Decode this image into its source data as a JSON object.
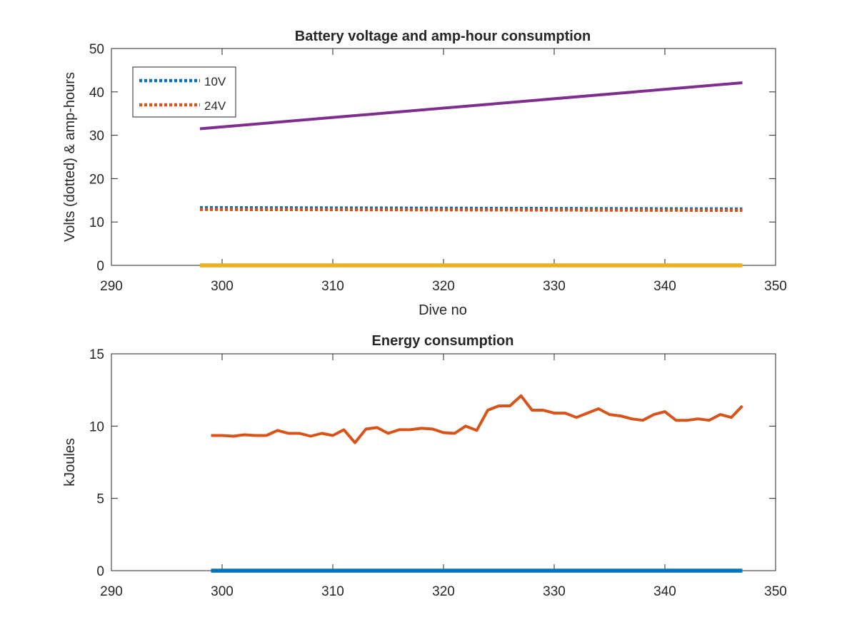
{
  "chart_data": [
    {
      "type": "line",
      "title": "Battery voltage and amp-hour consumption",
      "xlabel": "Dive no",
      "ylabel": "Volts (dotted) & amp-hours",
      "xlim": [
        290,
        350
      ],
      "ylim": [
        0,
        50
      ],
      "xticks": [
        290,
        300,
        310,
        320,
        330,
        340,
        350
      ],
      "yticks": [
        0,
        10,
        20,
        30,
        40,
        50
      ],
      "grid": false,
      "legend": {
        "placement": "top-left",
        "entries": [
          "10V",
          "24V"
        ]
      },
      "series": [
        {
          "name": "10V",
          "style": "dotted",
          "color": "#0072BD",
          "x": [
            298,
            347
          ],
          "y": [
            13.3,
            13.0
          ]
        },
        {
          "name": "24V",
          "style": "dotted",
          "color": "#D95319",
          "x": [
            298,
            347
          ],
          "y": [
            12.9,
            12.7
          ]
        },
        {
          "style": "solid",
          "color": "#7E2F8E",
          "x": [
            298,
            347
          ],
          "y": [
            31.5,
            42.1
          ]
        },
        {
          "style": "solid",
          "color": "#EDB120",
          "x": [
            298,
            347
          ],
          "y": [
            0.0,
            0.0
          ]
        }
      ]
    },
    {
      "type": "line",
      "title": "Energy consumption",
      "xlabel": "",
      "ylabel": "kJoules",
      "xlim": [
        290,
        350
      ],
      "ylim": [
        0,
        15
      ],
      "xticks": [
        290,
        300,
        310,
        320,
        330,
        340,
        350
      ],
      "yticks": [
        0,
        5,
        10,
        15
      ],
      "grid": false,
      "series": [
        {
          "style": "solid",
          "color": "#D95319",
          "x": [
            299,
            300,
            301,
            302,
            303,
            304,
            305,
            306,
            307,
            308,
            309,
            310,
            311,
            312,
            313,
            314,
            315,
            316,
            317,
            318,
            319,
            320,
            321,
            322,
            323,
            324,
            325,
            326,
            327,
            328,
            329,
            330,
            331,
            332,
            333,
            334,
            335,
            336,
            337,
            338,
            339,
            340,
            341,
            342,
            343,
            344,
            345,
            346,
            347
          ],
          "y": [
            9.35,
            9.35,
            9.3,
            9.4,
            9.35,
            9.35,
            9.7,
            9.5,
            9.5,
            9.3,
            9.5,
            9.35,
            9.75,
            8.85,
            9.8,
            9.9,
            9.5,
            9.75,
            9.75,
            9.85,
            9.8,
            9.55,
            9.5,
            10.0,
            9.7,
            11.1,
            11.4,
            11.4,
            12.1,
            11.1,
            11.1,
            10.9,
            10.9,
            10.6,
            10.9,
            11.2,
            10.8,
            10.7,
            10.5,
            10.4,
            10.8,
            11.0,
            10.4,
            10.4,
            10.5,
            10.4,
            10.8,
            10.6,
            11.4
          ]
        },
        {
          "style": "solid",
          "color": "#0072BD",
          "x": [
            299,
            347
          ],
          "y": [
            0.0,
            0.0
          ]
        }
      ]
    }
  ]
}
